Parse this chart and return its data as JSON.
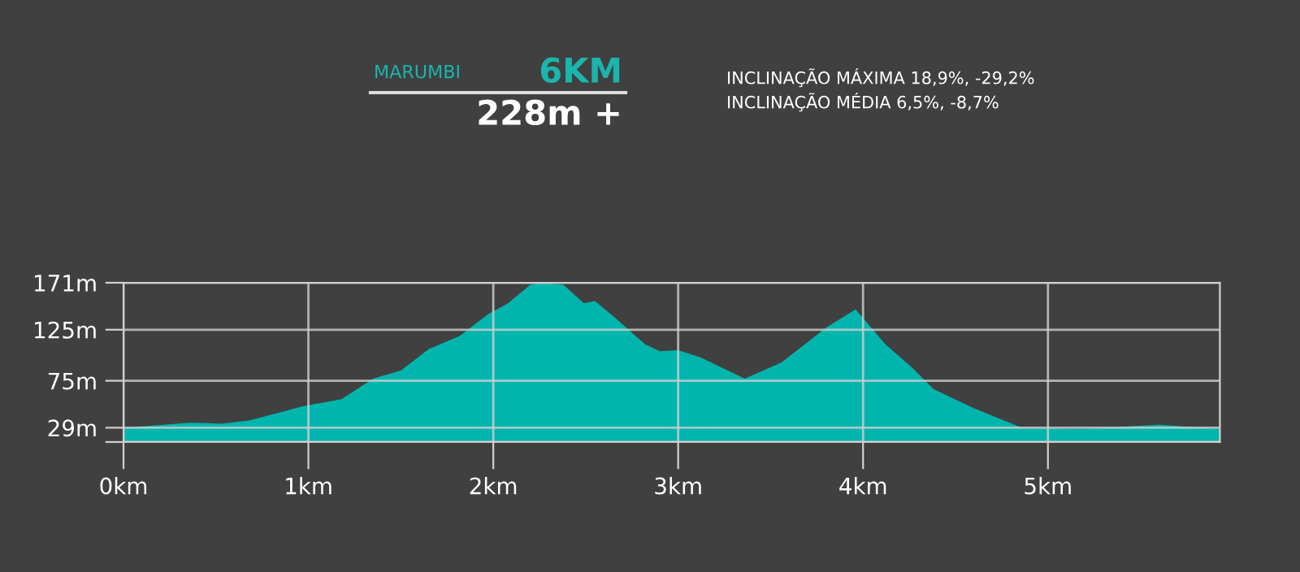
{
  "chart_data": {
    "type": "area",
    "title": "6KM",
    "subtitle": "228m +",
    "annotations": [
      "MARUMBI",
      "INCLINAÇÃO MÁXIMA 18,9%, -29,2%",
      "INCLINAÇÃO MÉDIA 6,5%, -8,7%"
    ],
    "x": [
      0,
      0.36,
      0.53,
      0.68,
      0.97,
      1.18,
      1.35,
      1.5,
      1.65,
      1.82,
      1.97,
      2.08,
      2.2,
      2.26,
      2.38,
      2.49,
      2.55,
      2.67,
      2.82,
      2.9,
      3,
      3.12,
      3.36,
      3.56,
      3.8,
      3.96,
      4.12,
      4.27,
      4.38,
      4.6,
      4.86,
      5.19,
      5.6,
      5.93
    ],
    "series": [
      {
        "color": "#00b5ad",
        "values": [
          29,
          34,
          33,
          36,
          50,
          57,
          77,
          85,
          106,
          119,
          140,
          151,
          169,
          171,
          169,
          151,
          153,
          135,
          111,
          104,
          105,
          98,
          77,
          93,
          127,
          145,
          111,
          87,
          67,
          48,
          29,
          28,
          32,
          28
        ]
      }
    ],
    "xlim": [
      0,
      5.93
    ],
    "xticks": [
      {
        "value": 0,
        "label": "0km"
      },
      {
        "value": 1,
        "label": "1km"
      },
      {
        "value": 2,
        "label": "2km"
      },
      {
        "value": 3,
        "label": "3km"
      },
      {
        "value": 4,
        "label": "4km"
      },
      {
        "value": 5,
        "label": "5km"
      }
    ],
    "ylim": [
      15,
      171
    ],
    "yticks": [
      {
        "value": 15,
        "label": null
      },
      {
        "value": 29,
        "label": "29m"
      },
      {
        "value": 75,
        "label": "75m"
      },
      {
        "value": 125,
        "label": "125m"
      },
      {
        "value": 171,
        "label": "171m"
      }
    ],
    "grid": true
  }
}
